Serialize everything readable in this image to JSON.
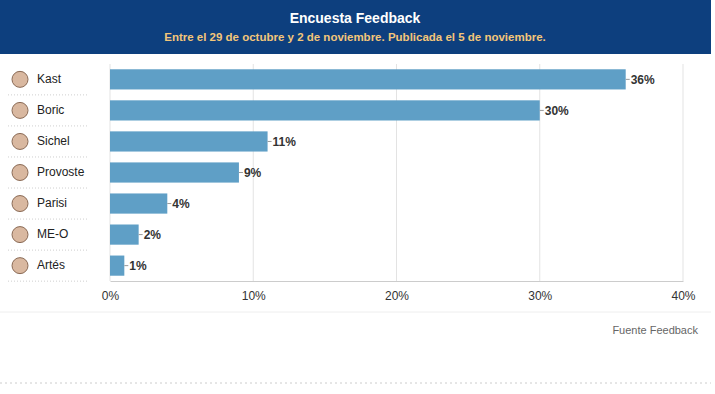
{
  "chart_data": {
    "type": "bar",
    "orientation": "horizontal",
    "title": "Encuesta Feedback",
    "subtitle": "Entre el 29 de octubre y 2 de noviembre. Publicada el 5 de noviembre.",
    "categories": [
      "Kast",
      "Boric",
      "Sichel",
      "Provoste",
      "Parisi",
      "ME-O",
      "Artés"
    ],
    "values": [
      36,
      30,
      11,
      9,
      4,
      2,
      1
    ],
    "value_labels": [
      "36%",
      "30%",
      "11%",
      "9%",
      "4%",
      "2%",
      "1%"
    ],
    "color": "#5f9fc6",
    "xlim": [
      0,
      40
    ],
    "xticks": [
      {
        "value": 0,
        "label": "0%"
      },
      {
        "value": 10,
        "label": "10%"
      },
      {
        "value": 20,
        "label": "20%"
      },
      {
        "value": 30,
        "label": "30%"
      },
      {
        "value": 40,
        "label": "40%"
      }
    ],
    "grid": true,
    "data_labels": true,
    "annotations": [
      "Fuente Feedback"
    ]
  }
}
